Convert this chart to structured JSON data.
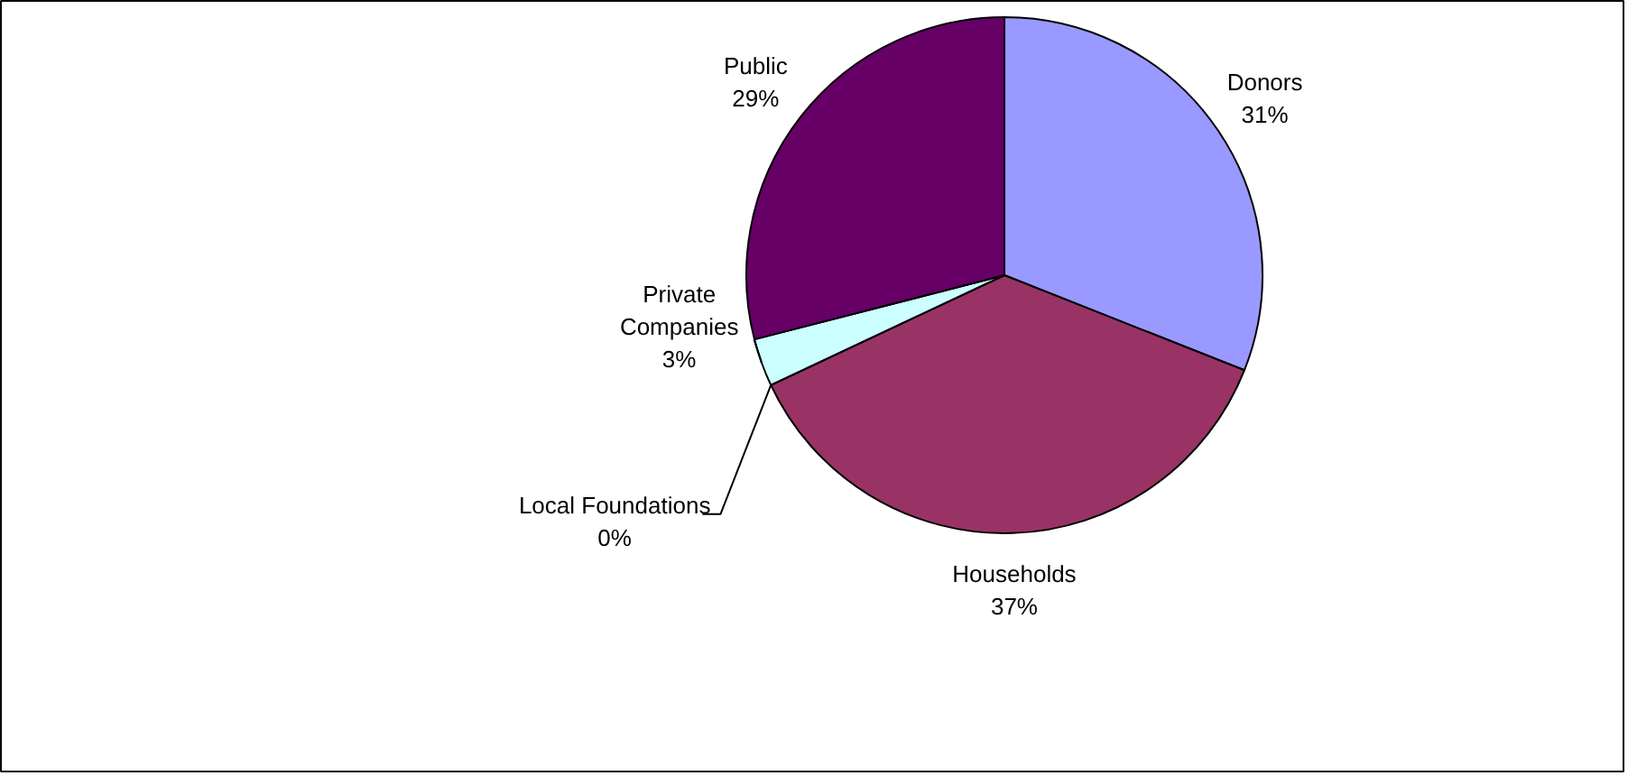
{
  "chart_data": {
    "type": "pie",
    "categories": [
      "Donors",
      "Households",
      "Local Foundations",
      "Private Companies",
      "Public"
    ],
    "values": [
      31,
      37,
      0,
      3,
      29
    ],
    "value_labels": [
      "31%",
      "37%",
      "0%",
      "3%",
      "29%"
    ],
    "colors": [
      "#9999ff",
      "#993366",
      "#ffffcc",
      "#ccffff",
      "#660066"
    ]
  }
}
